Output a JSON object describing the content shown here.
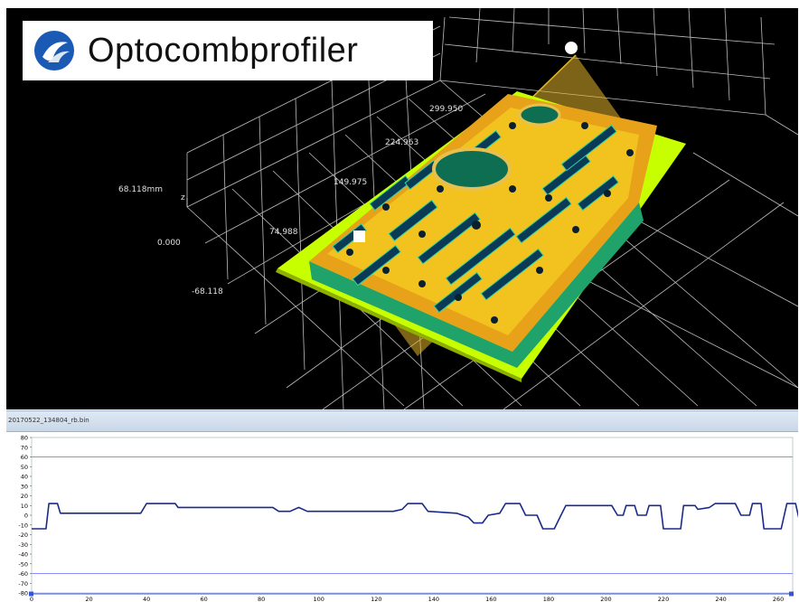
{
  "app": {
    "logo_text": "Optocombprofiler"
  },
  "viewport3d": {
    "z_axis_label": "z",
    "z_ticks": [
      "68.118mm",
      "0.000",
      "-68.118"
    ],
    "x_ticks": [
      "74.988",
      "149.975",
      "224.963",
      "299.950"
    ]
  },
  "profile": {
    "filename": "20170522_134804_rb.bin"
  },
  "colors": {
    "plot_line": "#1a2a8a",
    "limit_line": "#8c8cff",
    "part_fill": "#c8ff00",
    "part_top": "#e7a21a",
    "section_plane": "#e3b52a"
  },
  "chart_data": {
    "type": "line",
    "title": "",
    "xlabel": "",
    "ylabel": "",
    "xlim": [
      0,
      265
    ],
    "ylim": [
      -80,
      80
    ],
    "x_ticks": [
      0,
      20,
      40,
      60,
      80,
      100,
      120,
      140,
      160,
      180,
      200,
      220,
      240,
      260
    ],
    "y_ticks": [
      80,
      70,
      60,
      50,
      40,
      30,
      20,
      10,
      0,
      -10,
      -20,
      -30,
      -40,
      -50,
      -60,
      -70,
      -80
    ],
    "limit_lines": [
      60,
      -60
    ],
    "series": [
      {
        "points": [
          [
            0,
            -14
          ],
          [
            5,
            -14
          ],
          [
            6,
            12
          ],
          [
            9,
            12
          ],
          [
            10,
            2
          ],
          [
            38,
            2
          ],
          [
            40,
            12
          ],
          [
            50,
            12
          ],
          [
            51,
            8
          ],
          [
            84,
            8
          ],
          [
            86,
            4
          ],
          [
            90,
            4
          ],
          [
            93,
            8
          ],
          [
            96,
            4
          ],
          [
            126,
            4
          ],
          [
            129,
            6
          ],
          [
            131,
            12
          ],
          [
            136,
            12
          ],
          [
            138,
            4
          ],
          [
            148,
            2
          ],
          [
            152,
            -2
          ],
          [
            154,
            -8
          ],
          [
            157,
            -8
          ],
          [
            159,
            0
          ],
          [
            163,
            2
          ],
          [
            165,
            12
          ],
          [
            170,
            12
          ],
          [
            172,
            0
          ],
          [
            176,
            0
          ],
          [
            178,
            -14
          ],
          [
            182,
            -14
          ],
          [
            184,
            -2
          ],
          [
            186,
            10
          ],
          [
            202,
            10
          ],
          [
            204,
            0
          ],
          [
            206,
            0
          ],
          [
            207,
            10
          ],
          [
            210,
            10
          ],
          [
            211,
            0
          ],
          [
            214,
            0
          ],
          [
            215,
            10
          ],
          [
            219,
            10
          ],
          [
            220,
            -14
          ],
          [
            226,
            -14
          ],
          [
            227,
            10
          ],
          [
            231,
            10
          ],
          [
            232,
            6
          ],
          [
            236,
            8
          ],
          [
            238,
            12
          ],
          [
            245,
            12
          ],
          [
            247,
            0
          ],
          [
            250,
            0
          ],
          [
            251,
            12
          ],
          [
            254,
            12
          ],
          [
            255,
            -14
          ],
          [
            261,
            -14
          ],
          [
            263,
            12
          ],
          [
            266,
            12
          ],
          [
            268,
            -14
          ],
          [
            274,
            -14
          ]
        ]
      }
    ]
  }
}
